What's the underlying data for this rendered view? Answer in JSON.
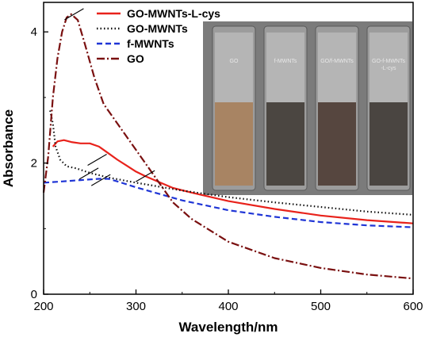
{
  "chart_data": {
    "type": "line",
    "xlabel": "Wavelength/nm",
    "ylabel": "Absorbance",
    "xlim": [
      200,
      600
    ],
    "ylim": [
      0,
      4.45
    ],
    "xticks": [
      200,
      300,
      400,
      500,
      600
    ],
    "yticks": [
      0,
      2,
      4
    ],
    "legend_position": "top-center",
    "series": [
      {
        "name": "GO-MWNTs-L-cys",
        "color": "#e8221b",
        "dash": "solid",
        "x": [
          210,
          215,
          222,
          230,
          240,
          250,
          260,
          270,
          280,
          290,
          300,
          310,
          320,
          340,
          360,
          400,
          450,
          500,
          550,
          600
        ],
        "y": [
          2.25,
          2.33,
          2.35,
          2.32,
          2.3,
          2.3,
          2.25,
          2.15,
          2.05,
          1.96,
          1.87,
          1.8,
          1.74,
          1.62,
          1.55,
          1.42,
          1.3,
          1.2,
          1.13,
          1.08
        ]
      },
      {
        "name": "GO-MWNTs",
        "color": "#111111",
        "dash": "dotted",
        "x": [
          207,
          210,
          213,
          218,
          225,
          235,
          250,
          270,
          300,
          350,
          400,
          450,
          500,
          550,
          600
        ],
        "y": [
          2.8,
          2.6,
          2.25,
          2.05,
          1.95,
          1.92,
          1.85,
          1.78,
          1.7,
          1.58,
          1.48,
          1.4,
          1.33,
          1.26,
          1.21
        ]
      },
      {
        "name": "f-MWNTs",
        "color": "#1f35d6",
        "dash": "dashed",
        "x": [
          200,
          220,
          240,
          260,
          270,
          280,
          300,
          320,
          350,
          400,
          450,
          500,
          550,
          600
        ],
        "y": [
          1.7,
          1.72,
          1.74,
          1.76,
          1.76,
          1.72,
          1.63,
          1.55,
          1.43,
          1.28,
          1.18,
          1.1,
          1.05,
          1.02
        ]
      },
      {
        "name": "GO",
        "color": "#7a1010",
        "dash": "dashdot",
        "x": [
          200,
          205,
          210,
          215,
          220,
          225,
          230,
          237,
          245,
          255,
          265,
          280,
          295,
          310,
          325,
          340,
          360,
          400,
          450,
          500,
          550,
          600
        ],
        "y": [
          1.55,
          2.1,
          3.0,
          3.6,
          4.0,
          4.22,
          4.27,
          4.18,
          3.8,
          3.3,
          2.9,
          2.6,
          2.3,
          2.0,
          1.7,
          1.4,
          1.15,
          0.8,
          0.55,
          0.4,
          0.3,
          0.24
        ]
      }
    ],
    "inset": {
      "vial_labels": [
        "GO",
        "f-MWNTs",
        "GO/f-MWNTs",
        "GO-f-MWNTs\n-L-cys"
      ],
      "vial_colors": [
        "#a88463",
        "#4b4641",
        "#56463f",
        "#4a4541"
      ]
    }
  }
}
